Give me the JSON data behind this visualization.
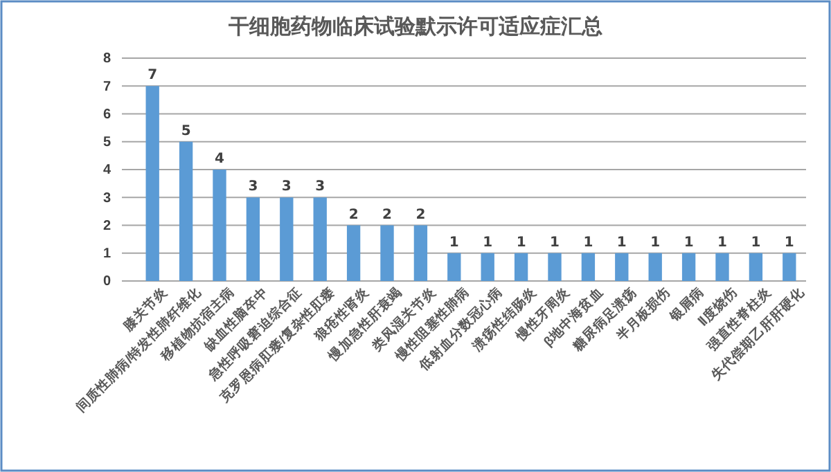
{
  "chart_data": {
    "type": "bar",
    "title": "干细胞药物临床试验默示许可适应症汇总",
    "categories": [
      "膝关节炎",
      "间质性肺病/特发性肺纤维化",
      "移植物抗宿主病",
      "缺血性脑卒中",
      "急性呼吸窘迫综合征",
      "克罗恩病肛瘘/复杂性肛瘘",
      "狼疮性肾炎",
      "慢加急性肝衰竭",
      "类风湿关节炎",
      "慢性阻塞性肺病",
      "低射血分数冠心病",
      "溃疡性结肠炎",
      "慢性牙周炎",
      "β地中海贫血",
      "糖尿病足溃疡",
      "半月板损伤",
      "银屑病",
      "Ⅱ度烧伤",
      "强直性脊柱炎",
      "失代偿期乙肝肝硬化"
    ],
    "values": [
      7,
      5,
      4,
      3,
      3,
      3,
      2,
      2,
      2,
      1,
      1,
      1,
      1,
      1,
      1,
      1,
      1,
      1,
      1,
      1
    ],
    "color": "#5b9bd5",
    "ylim": [
      0,
      8
    ],
    "yticks": [
      0,
      1,
      2,
      3,
      4,
      5,
      6,
      7,
      8
    ],
    "grid": "y",
    "data_labels": true
  }
}
